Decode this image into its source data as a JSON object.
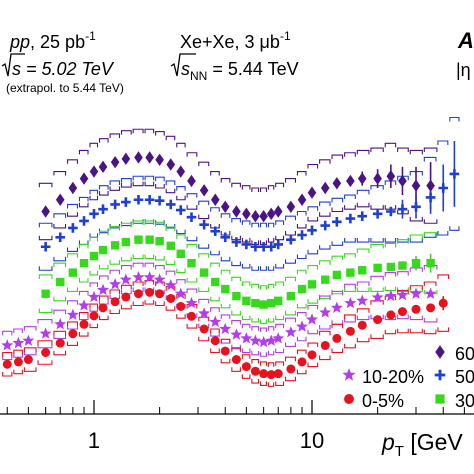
{
  "chart_data": {
    "type": "scatter",
    "x_scale": "log",
    "xlim": [
      0.3,
      60
    ],
    "ylim": [
      0,
      1
    ],
    "xlabel": {
      "main": "p",
      "sub": "T",
      "rest": " [GeV"
    },
    "x_ticks": [
      "1",
      "10"
    ],
    "annotations": {
      "pp_label": {
        "main": "pp",
        "rest": ", 25 pb",
        "sup": "-1"
      },
      "pp_energy": {
        "main": "s = 5.02 TeV"
      },
      "pp_note": "(extrapol. to 5.44 TeV)",
      "xexe_label": {
        "main": "Xe+Xe, 3 μb",
        "sup": "-1"
      },
      "xexe_energy": {
        "main": "s",
        "sub": "NN",
        "rest": " = 5.44 TeV"
      },
      "corner_logo": "A",
      "corner_eta": "|η"
    },
    "legend_entries": [
      "60",
      "50",
      "30",
      "10-20%",
      "0-5%"
    ],
    "series": [
      {
        "name": "60",
        "marker": "diamond",
        "color": "#4b1486",
        "x": [
          0.6,
          0.7,
          0.8,
          0.9,
          1.0,
          1.1,
          1.25,
          1.4,
          1.6,
          1.8,
          2.0,
          2.25,
          2.5,
          2.8,
          3.2,
          3.6,
          4.0,
          4.5,
          5.0,
          5.5,
          6.0,
          6.5,
          7.0,
          8.0,
          9.0,
          10.0,
          11.5,
          13.0,
          15.0,
          17.0,
          20.0,
          23.0,
          26.0,
          30.0,
          35.0
        ],
        "y": [
          0.55,
          0.575,
          0.6,
          0.62,
          0.635,
          0.645,
          0.655,
          0.662,
          0.665,
          0.665,
          0.66,
          0.65,
          0.635,
          0.615,
          0.595,
          0.575,
          0.56,
          0.55,
          0.545,
          0.54,
          0.54,
          0.545,
          0.55,
          0.56,
          0.575,
          0.59,
          0.6,
          0.61,
          0.615,
          0.62,
          0.62,
          0.625,
          0.615,
          0.605,
          0.605
        ],
        "yerr": [
          0,
          0,
          0,
          0,
          0,
          0,
          0,
          0,
          0,
          0,
          0,
          0,
          0,
          0,
          0,
          0,
          0,
          0,
          0,
          0,
          0,
          0,
          0,
          0,
          0,
          0,
          0,
          0,
          0,
          0.015,
          0.02,
          0.025,
          0.03,
          0.04,
          0.05
        ],
        "sys": [
          0.06,
          0.06,
          0.06,
          0.06,
          0.06,
          0.06,
          0.06,
          0.06,
          0.06,
          0.06,
          0.06,
          0.06,
          0.06,
          0.06,
          0.06,
          0.06,
          0.06,
          0.06,
          0.06,
          0.06,
          0.06,
          0.06,
          0.06,
          0.06,
          0.06,
          0.06,
          0.06,
          0.06,
          0.06,
          0.06,
          0.065,
          0.07,
          0.07,
          0.075,
          0.08
        ]
      },
      {
        "name": "50",
        "marker": "plus",
        "color": "#1f3fd1",
        "x": [
          0.6,
          0.7,
          0.8,
          0.9,
          1.0,
          1.1,
          1.25,
          1.4,
          1.6,
          1.8,
          2.0,
          2.25,
          2.5,
          2.8,
          3.2,
          3.6,
          4.0,
          4.5,
          5.0,
          5.5,
          6.0,
          6.5,
          7.0,
          8.0,
          9.0,
          10.0,
          11.5,
          13.0,
          15.0,
          17.0,
          20.0,
          23.0,
          26.0,
          30.0,
          35.0,
          40.0,
          45.0
        ],
        "y": [
          0.475,
          0.495,
          0.515,
          0.53,
          0.545,
          0.555,
          0.565,
          0.57,
          0.575,
          0.575,
          0.573,
          0.565,
          0.553,
          0.538,
          0.522,
          0.508,
          0.495,
          0.485,
          0.48,
          0.475,
          0.475,
          0.475,
          0.48,
          0.49,
          0.5,
          0.51,
          0.52,
          0.528,
          0.535,
          0.54,
          0.545,
          0.55,
          0.555,
          0.56,
          0.58,
          0.6,
          0.63
        ],
        "yerr": [
          0,
          0,
          0,
          0,
          0,
          0,
          0,
          0,
          0,
          0,
          0,
          0,
          0,
          0,
          0,
          0,
          0,
          0,
          0,
          0,
          0,
          0,
          0,
          0,
          0,
          0,
          0,
          0,
          0,
          0,
          0,
          0,
          0.02,
          0.025,
          0.035,
          0.05,
          0.07
        ],
        "sys": [
          0.05,
          0.05,
          0.05,
          0.05,
          0.05,
          0.05,
          0.05,
          0.05,
          0.05,
          0.05,
          0.05,
          0.05,
          0.05,
          0.05,
          0.05,
          0.05,
          0.05,
          0.05,
          0.05,
          0.05,
          0.05,
          0.05,
          0.05,
          0.05,
          0.05,
          0.05,
          0.05,
          0.05,
          0.05,
          0.055,
          0.06,
          0.065,
          0.07,
          0.075,
          0.085,
          0.1,
          0.12
        ]
      },
      {
        "name": "30",
        "marker": "square",
        "color": "#38d81e",
        "x": [
          0.6,
          0.7,
          0.8,
          0.9,
          1.0,
          1.1,
          1.25,
          1.4,
          1.6,
          1.8,
          2.0,
          2.25,
          2.5,
          2.8,
          3.2,
          3.6,
          4.0,
          4.5,
          5.0,
          5.5,
          6.0,
          6.5,
          7.0,
          8.0,
          9.0,
          10.0,
          11.5,
          13.0,
          15.0,
          17.0,
          20.0,
          23.0,
          26.0,
          30.0,
          35.0
        ],
        "y": [
          0.375,
          0.4,
          0.42,
          0.44,
          0.455,
          0.468,
          0.478,
          0.485,
          0.49,
          0.49,
          0.487,
          0.477,
          0.46,
          0.44,
          0.42,
          0.4,
          0.385,
          0.37,
          0.36,
          0.355,
          0.352,
          0.355,
          0.36,
          0.37,
          0.385,
          0.395,
          0.405,
          0.415,
          0.42,
          0.425,
          0.43,
          0.432,
          0.435,
          0.44,
          0.44
        ],
        "yerr": [
          0,
          0,
          0,
          0,
          0,
          0,
          0,
          0,
          0,
          0,
          0,
          0,
          0,
          0,
          0,
          0,
          0,
          0,
          0,
          0,
          0,
          0,
          0,
          0,
          0,
          0,
          0,
          0,
          0,
          0,
          0,
          0,
          0,
          0.015,
          0.02
        ],
        "sys": [
          0.04,
          0.04,
          0.04,
          0.04,
          0.04,
          0.04,
          0.04,
          0.04,
          0.04,
          0.04,
          0.04,
          0.04,
          0.04,
          0.04,
          0.04,
          0.04,
          0.04,
          0.04,
          0.04,
          0.04,
          0.04,
          0.04,
          0.04,
          0.04,
          0.04,
          0.04,
          0.04,
          0.04,
          0.04,
          0.045,
          0.05,
          0.05,
          0.055,
          0.06,
          0.065
        ]
      },
      {
        "name": "10-20%",
        "marker": "star",
        "color": "#b43cea",
        "x": [
          0.4,
          0.45,
          0.5,
          0.6,
          0.7,
          0.8,
          0.9,
          1.0,
          1.1,
          1.25,
          1.4,
          1.6,
          1.8,
          2.0,
          2.25,
          2.5,
          2.8,
          3.2,
          3.6,
          4.0,
          4.5,
          5.0,
          5.5,
          6.0,
          6.5,
          7.0,
          8.0,
          9.0,
          10.0,
          11.5,
          13.0,
          15.0,
          17.0,
          20.0,
          23.0,
          26.0,
          30.0,
          35.0
        ],
        "y": [
          0.265,
          0.27,
          0.275,
          0.29,
          0.31,
          0.33,
          0.35,
          0.368,
          0.383,
          0.395,
          0.405,
          0.41,
          0.41,
          0.405,
          0.393,
          0.375,
          0.355,
          0.333,
          0.315,
          0.3,
          0.288,
          0.28,
          0.275,
          0.272,
          0.275,
          0.28,
          0.293,
          0.305,
          0.32,
          0.335,
          0.345,
          0.355,
          0.36,
          0.367,
          0.37,
          0.372,
          0.375,
          0.375
        ],
        "yerr": [
          0,
          0,
          0,
          0,
          0,
          0,
          0,
          0,
          0,
          0,
          0,
          0,
          0,
          0,
          0,
          0,
          0,
          0,
          0,
          0,
          0,
          0,
          0,
          0,
          0,
          0,
          0,
          0,
          0,
          0,
          0,
          0,
          0,
          0,
          0,
          0,
          0,
          0
        ],
        "sys": [
          0.03,
          0.03,
          0.03,
          0.03,
          0.03,
          0.03,
          0.03,
          0.03,
          0.03,
          0.03,
          0.03,
          0.03,
          0.03,
          0.03,
          0.03,
          0.03,
          0.03,
          0.03,
          0.03,
          0.03,
          0.03,
          0.03,
          0.03,
          0.03,
          0.03,
          0.03,
          0.03,
          0.03,
          0.03,
          0.035,
          0.035,
          0.04,
          0.04,
          0.045,
          0.05,
          0.05,
          0.055,
          0.06
        ]
      },
      {
        "name": "0-5%",
        "marker": "circle",
        "color": "#e8121e",
        "x": [
          0.4,
          0.45,
          0.5,
          0.6,
          0.7,
          0.8,
          0.9,
          1.0,
          1.1,
          1.25,
          1.4,
          1.6,
          1.8,
          2.0,
          2.25,
          2.5,
          2.8,
          3.2,
          3.6,
          4.0,
          4.5,
          5.0,
          5.5,
          6.0,
          6.5,
          7.0,
          8.0,
          9.0,
          10.0,
          11.5,
          13.0,
          15.0,
          17.0,
          20.0,
          23.0,
          26.0,
          30.0,
          35.0,
          40.0
        ],
        "y": [
          0.225,
          0.23,
          0.235,
          0.25,
          0.27,
          0.29,
          0.31,
          0.328,
          0.345,
          0.358,
          0.368,
          0.375,
          0.378,
          0.375,
          0.365,
          0.348,
          0.327,
          0.3,
          0.275,
          0.253,
          0.235,
          0.22,
          0.21,
          0.205,
          0.203,
          0.205,
          0.215,
          0.23,
          0.245,
          0.265,
          0.28,
          0.295,
          0.308,
          0.32,
          0.33,
          0.337,
          0.342,
          0.345,
          0.355
        ],
        "yerr": [
          0,
          0,
          0,
          0,
          0,
          0,
          0,
          0,
          0,
          0,
          0,
          0,
          0,
          0,
          0,
          0,
          0,
          0,
          0,
          0,
          0,
          0,
          0,
          0,
          0,
          0,
          0,
          0,
          0,
          0,
          0,
          0,
          0,
          0,
          0,
          0,
          0,
          0,
          0.015
        ],
        "sys": [
          0.025,
          0.025,
          0.025,
          0.025,
          0.025,
          0.025,
          0.025,
          0.025,
          0.025,
          0.025,
          0.025,
          0.025,
          0.025,
          0.025,
          0.025,
          0.025,
          0.025,
          0.025,
          0.025,
          0.025,
          0.025,
          0.025,
          0.025,
          0.025,
          0.025,
          0.025,
          0.025,
          0.025,
          0.025,
          0.03,
          0.03,
          0.035,
          0.035,
          0.04,
          0.04,
          0.045,
          0.05,
          0.055,
          0.06
        ]
      }
    ]
  }
}
